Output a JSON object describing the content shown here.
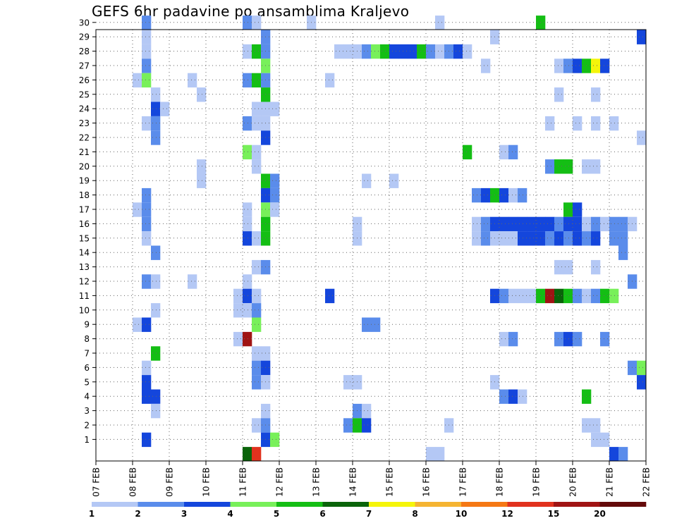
{
  "chart_data": {
    "type": "heatmap",
    "title": "GEFS 6hr padavine po ansamblima Kraljevo",
    "xlabel": "",
    "ylabel": "",
    "x_tick_labels": [
      "07 FEB",
      "08 FEB",
      "09 FEB",
      "10 FEB",
      "11 FEB",
      "12 FEB",
      "13 FEB",
      "14 FEB",
      "15 FEB",
      "16 FEB",
      "17 FEB",
      "18 FEB",
      "19 FEB",
      "20 FEB",
      "21 FEB",
      "22 FEB"
    ],
    "y_tick_labels": [
      "1",
      "2",
      "3",
      "4",
      "5",
      "6",
      "7",
      "8",
      "9",
      "10",
      "11",
      "12",
      "13",
      "14",
      "15",
      "16",
      "17",
      "18",
      "19",
      "20",
      "21",
      "22",
      "23",
      "24",
      "25",
      "26",
      "27",
      "28",
      "29",
      "30"
    ],
    "xlim": [
      0,
      60
    ],
    "ylim": [
      0,
      30
    ],
    "grid": true,
    "colorbar": {
      "labels": [
        "1",
        "2",
        "3",
        "4",
        "5",
        "6",
        "7",
        "8",
        "10",
        "12",
        "15",
        "20"
      ],
      "colors": [
        "#b4c8f5",
        "#5a8ceb",
        "#1446dc",
        "#78f05a",
        "#14be14",
        "#0a640a",
        "#f5f50a",
        "#f5b432",
        "#f57814",
        "#e1321e",
        "#a01414",
        "#640a0a"
      ]
    },
    "cells": [
      [
        5,
        30,
        2
      ],
      [
        16,
        30,
        2
      ],
      [
        17,
        30,
        1
      ],
      [
        23,
        30,
        1
      ],
      [
        37,
        30,
        1
      ],
      [
        48,
        30,
        5
      ],
      [
        5,
        29,
        1
      ],
      [
        18,
        29,
        2
      ],
      [
        43,
        29,
        1
      ],
      [
        59,
        29,
        3
      ],
      [
        5,
        28,
        1
      ],
      [
        16,
        28,
        1
      ],
      [
        17,
        28,
        5
      ],
      [
        18,
        28,
        2
      ],
      [
        26,
        28,
        1
      ],
      [
        27,
        28,
        1
      ],
      [
        28,
        28,
        1
      ],
      [
        29,
        28,
        2
      ],
      [
        30,
        28,
        4
      ],
      [
        31,
        28,
        5
      ],
      [
        32,
        28,
        3
      ],
      [
        33,
        28,
        3
      ],
      [
        34,
        28,
        3
      ],
      [
        35,
        28,
        5
      ],
      [
        36,
        28,
        2
      ],
      [
        37,
        28,
        1
      ],
      [
        38,
        28,
        2
      ],
      [
        39,
        28,
        3
      ],
      [
        40,
        28,
        1
      ],
      [
        5,
        27,
        2
      ],
      [
        18,
        27,
        4
      ],
      [
        42,
        27,
        1
      ],
      [
        50,
        27,
        1
      ],
      [
        51,
        27,
        2
      ],
      [
        52,
        27,
        3
      ],
      [
        53,
        27,
        5
      ],
      [
        54,
        27,
        7
      ],
      [
        55,
        27,
        3
      ],
      [
        4,
        26,
        1
      ],
      [
        5,
        26,
        4
      ],
      [
        10,
        26,
        1
      ],
      [
        16,
        26,
        2
      ],
      [
        17,
        26,
        5
      ],
      [
        18,
        26,
        2
      ],
      [
        25,
        26,
        1
      ],
      [
        6,
        25,
        1
      ],
      [
        11,
        25,
        1
      ],
      [
        18,
        25,
        5
      ],
      [
        50,
        25,
        1
      ],
      [
        54,
        25,
        1
      ],
      [
        6,
        24,
        3
      ],
      [
        7,
        24,
        1
      ],
      [
        17,
        24,
        1
      ],
      [
        18,
        24,
        1
      ],
      [
        19,
        24,
        1
      ],
      [
        5,
        23,
        1
      ],
      [
        6,
        23,
        2
      ],
      [
        16,
        23,
        2
      ],
      [
        17,
        23,
        1
      ],
      [
        18,
        23,
        1
      ],
      [
        49,
        23,
        1
      ],
      [
        52,
        23,
        1
      ],
      [
        54,
        23,
        1
      ],
      [
        56,
        23,
        1
      ],
      [
        6,
        22,
        2
      ],
      [
        18,
        22,
        3
      ],
      [
        59,
        22,
        1
      ],
      [
        16,
        21,
        4
      ],
      [
        17,
        21,
        1
      ],
      [
        40,
        21,
        5
      ],
      [
        44,
        21,
        1
      ],
      [
        45,
        21,
        2
      ],
      [
        11,
        20,
        1
      ],
      [
        17,
        20,
        1
      ],
      [
        49,
        20,
        2
      ],
      [
        50,
        20,
        5
      ],
      [
        51,
        20,
        5
      ],
      [
        53,
        20,
        1
      ],
      [
        54,
        20,
        1
      ],
      [
        11,
        19,
        1
      ],
      [
        18,
        19,
        5
      ],
      [
        19,
        19,
        2
      ],
      [
        29,
        19,
        1
      ],
      [
        32,
        19,
        1
      ],
      [
        5,
        18,
        2
      ],
      [
        18,
        18,
        3
      ],
      [
        19,
        18,
        2
      ],
      [
        41,
        18,
        2
      ],
      [
        42,
        18,
        3
      ],
      [
        43,
        18,
        5
      ],
      [
        44,
        18,
        3
      ],
      [
        45,
        18,
        1
      ],
      [
        46,
        18,
        2
      ],
      [
        4,
        17,
        1
      ],
      [
        5,
        17,
        2
      ],
      [
        16,
        17,
        1
      ],
      [
        18,
        17,
        4
      ],
      [
        19,
        17,
        1
      ],
      [
        51,
        17,
        5
      ],
      [
        52,
        17,
        3
      ],
      [
        5,
        16,
        2
      ],
      [
        16,
        16,
        1
      ],
      [
        18,
        16,
        5
      ],
      [
        28,
        16,
        1
      ],
      [
        41,
        16,
        1
      ],
      [
        42,
        16,
        2
      ],
      [
        43,
        16,
        3
      ],
      [
        44,
        16,
        3
      ],
      [
        45,
        16,
        3
      ],
      [
        46,
        16,
        3
      ],
      [
        47,
        16,
        3
      ],
      [
        48,
        16,
        3
      ],
      [
        49,
        16,
        3
      ],
      [
        50,
        16,
        2
      ],
      [
        51,
        16,
        3
      ],
      [
        52,
        16,
        3
      ],
      [
        53,
        16,
        1
      ],
      [
        54,
        16,
        2
      ],
      [
        55,
        16,
        1
      ],
      [
        56,
        16,
        2
      ],
      [
        57,
        16,
        2
      ],
      [
        58,
        16,
        1
      ],
      [
        5,
        15,
        1
      ],
      [
        16,
        15,
        3
      ],
      [
        17,
        15,
        1
      ],
      [
        18,
        15,
        5
      ],
      [
        28,
        15,
        1
      ],
      [
        41,
        15,
        1
      ],
      [
        42,
        15,
        2
      ],
      [
        43,
        15,
        1
      ],
      [
        44,
        15,
        1
      ],
      [
        45,
        15,
        1
      ],
      [
        46,
        15,
        3
      ],
      [
        47,
        15,
        3
      ],
      [
        48,
        15,
        3
      ],
      [
        49,
        15,
        2
      ],
      [
        50,
        15,
        3
      ],
      [
        51,
        15,
        2
      ],
      [
        52,
        15,
        3
      ],
      [
        53,
        15,
        2
      ],
      [
        54,
        15,
        3
      ],
      [
        56,
        15,
        2
      ],
      [
        57,
        15,
        2
      ],
      [
        6,
        14,
        2
      ],
      [
        57,
        14,
        2
      ],
      [
        17,
        13,
        1
      ],
      [
        18,
        13,
        2
      ],
      [
        50,
        13,
        1
      ],
      [
        51,
        13,
        1
      ],
      [
        54,
        13,
        1
      ],
      [
        5,
        12,
        2
      ],
      [
        6,
        12,
        1
      ],
      [
        10,
        12,
        1
      ],
      [
        16,
        12,
        1
      ],
      [
        58,
        12,
        2
      ],
      [
        15,
        11,
        1
      ],
      [
        16,
        11,
        3
      ],
      [
        17,
        11,
        1
      ],
      [
        25,
        11,
        3
      ],
      [
        43,
        11,
        3
      ],
      [
        44,
        11,
        2
      ],
      [
        45,
        11,
        1
      ],
      [
        46,
        11,
        1
      ],
      [
        47,
        11,
        1
      ],
      [
        48,
        11,
        5
      ],
      [
        49,
        11,
        11
      ],
      [
        50,
        11,
        6
      ],
      [
        51,
        11,
        5
      ],
      [
        52,
        11,
        2
      ],
      [
        53,
        11,
        1
      ],
      [
        54,
        11,
        2
      ],
      [
        55,
        11,
        5
      ],
      [
        56,
        11,
        4
      ],
      [
        6,
        10,
        1
      ],
      [
        15,
        10,
        1
      ],
      [
        16,
        10,
        1
      ],
      [
        17,
        10,
        2
      ],
      [
        4,
        9,
        1
      ],
      [
        5,
        9,
        3
      ],
      [
        17,
        9,
        4
      ],
      [
        29,
        9,
        2
      ],
      [
        30,
        9,
        2
      ],
      [
        15,
        8,
        1
      ],
      [
        16,
        8,
        11
      ],
      [
        44,
        8,
        1
      ],
      [
        45,
        8,
        2
      ],
      [
        50,
        8,
        2
      ],
      [
        51,
        8,
        3
      ],
      [
        52,
        8,
        2
      ],
      [
        55,
        8,
        2
      ],
      [
        6,
        7,
        5
      ],
      [
        17,
        7,
        1
      ],
      [
        18,
        7,
        1
      ],
      [
        5,
        6,
        1
      ],
      [
        17,
        6,
        2
      ],
      [
        18,
        6,
        3
      ],
      [
        58,
        6,
        2
      ],
      [
        59,
        6,
        4
      ],
      [
        5,
        5,
        3
      ],
      [
        17,
        5,
        2
      ],
      [
        18,
        5,
        1
      ],
      [
        27,
        5,
        1
      ],
      [
        28,
        5,
        1
      ],
      [
        43,
        5,
        1
      ],
      [
        59,
        5,
        3
      ],
      [
        5,
        4,
        3
      ],
      [
        6,
        4,
        3
      ],
      [
        44,
        4,
        2
      ],
      [
        45,
        4,
        3
      ],
      [
        46,
        4,
        1
      ],
      [
        53,
        4,
        5
      ],
      [
        6,
        3,
        1
      ],
      [
        18,
        3,
        1
      ],
      [
        28,
        3,
        2
      ],
      [
        29,
        3,
        1
      ],
      [
        17,
        2,
        1
      ],
      [
        18,
        2,
        2
      ],
      [
        27,
        2,
        2
      ],
      [
        28,
        2,
        5
      ],
      [
        29,
        2,
        3
      ],
      [
        38,
        2,
        1
      ],
      [
        53,
        2,
        1
      ],
      [
        54,
        2,
        1
      ],
      [
        5,
        1,
        3
      ],
      [
        18,
        1,
        3
      ],
      [
        19,
        1,
        4
      ],
      [
        54,
        1,
        1
      ],
      [
        55,
        1,
        1
      ],
      [
        16,
        0,
        6
      ],
      [
        17,
        0,
        10
      ],
      [
        36,
        0,
        1
      ],
      [
        37,
        0,
        1
      ],
      [
        56,
        0,
        3
      ],
      [
        57,
        0,
        2
      ]
    ]
  }
}
